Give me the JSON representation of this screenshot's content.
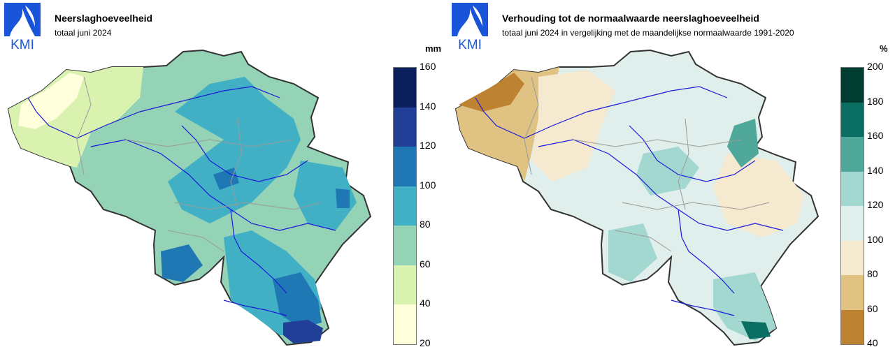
{
  "left": {
    "title": "Neerslaghoeveelheid",
    "subtitle": "totaal juni 2024",
    "unit": "mm",
    "legend": {
      "ticks": [
        "160",
        "140",
        "120",
        "100",
        "80",
        "60",
        "40",
        "20"
      ],
      "colors": [
        "#0b1f5c",
        "#223f98",
        "#1f78b4",
        "#41b0c4",
        "#94d3b6",
        "#daf2b0",
        "#ffffdc"
      ]
    }
  },
  "right": {
    "title": "Verhouding tot de normaalwaarde neerslaghoeveelheid",
    "subtitle": "totaal juni 2024 in vergelijking met de maandelijkse normaalwaarde 1991-2020",
    "unit": "%",
    "legend": {
      "ticks": [
        "200",
        "180",
        "160",
        "140",
        "120",
        "100",
        "80",
        "60",
        "40"
      ],
      "colors": [
        "#003c30",
        "#0b6e63",
        "#4fa89a",
        "#a2d8cf",
        "#e0efec",
        "#f5e9cf",
        "#e0c383",
        "#bd8332"
      ]
    }
  },
  "logo": {
    "text": "KMI",
    "color": "#1a55d9"
  }
}
